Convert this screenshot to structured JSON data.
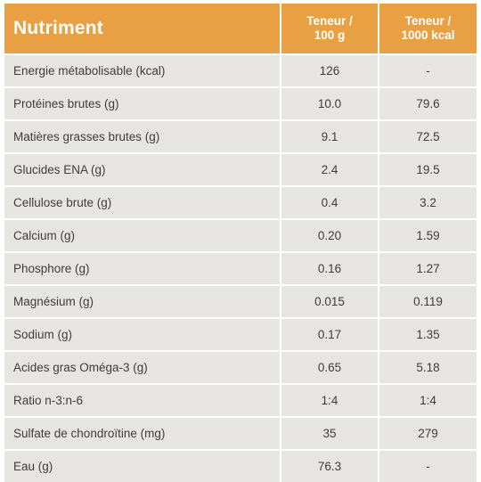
{
  "table": {
    "header": {
      "nutrient": "Nutriment",
      "per100g_line1": "Teneur /",
      "per100g_line2": "100 g",
      "per1000_line1": "Teneur /",
      "per1000_line2": "1000 kcal"
    },
    "rows": [
      {
        "name": "Energie métabolisable (kcal)",
        "per100g": "126",
        "per1000kcal": "-"
      },
      {
        "name": "Protéines brutes (g)",
        "per100g": "10.0",
        "per1000kcal": "79.6"
      },
      {
        "name": "Matières grasses brutes (g)",
        "per100g": "9.1",
        "per1000kcal": "72.5"
      },
      {
        "name": "Glucides ENA (g)",
        "per100g": "2.4",
        "per1000kcal": "19.5"
      },
      {
        "name": "Cellulose brute (g)",
        "per100g": "0.4",
        "per1000kcal": "3.2"
      },
      {
        "name": "Calcium (g)",
        "per100g": "0.20",
        "per1000kcal": "1.59"
      },
      {
        "name": "Phosphore (g)",
        "per100g": "0.16",
        "per1000kcal": "1.27"
      },
      {
        "name": "Magnésium (g)",
        "per100g": "0.015",
        "per1000kcal": "0.119"
      },
      {
        "name": "Sodium (g)",
        "per100g": "0.17",
        "per1000kcal": "1.35"
      },
      {
        "name": "Acides gras Oméga-3 (g)",
        "per100g": "0.65",
        "per1000kcal": "5.18"
      },
      {
        "name": "Ratio n-3:n-6",
        "per100g": "1:4",
        "per1000kcal": "1:4"
      },
      {
        "name": "Sulfate de chondroïtine (mg)",
        "per100g": "35",
        "per1000kcal": "279"
      },
      {
        "name": "Eau (g)",
        "per100g": "76.3",
        "per1000kcal": "-"
      }
    ]
  },
  "colors": {
    "header_bg": "#e9a043",
    "row_bg": "#e6e5e1",
    "text": "#3d3d3d"
  }
}
